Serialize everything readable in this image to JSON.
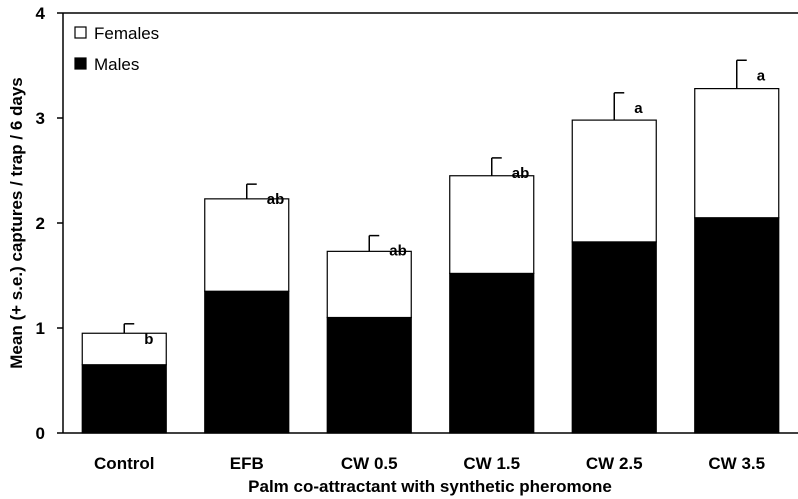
{
  "chart_data": {
    "type": "bar",
    "stacked": true,
    "categories": [
      "Control",
      "EFB",
      "CW 0.5",
      "CW 1.5",
      "CW 2.5",
      "CW 3.5"
    ],
    "series": [
      {
        "name": "Males",
        "color": "#000000",
        "values": [
          0.65,
          1.35,
          1.1,
          1.52,
          1.82,
          2.05
        ]
      },
      {
        "name": "Females",
        "color": "#ffffff",
        "values": [
          0.3,
          0.88,
          0.63,
          0.93,
          1.16,
          1.23
        ]
      }
    ],
    "totals": [
      0.95,
      2.23,
      1.73,
      2.45,
      2.98,
      3.28
    ],
    "errors": [
      0.09,
      0.14,
      0.15,
      0.17,
      0.26,
      0.27
    ],
    "annotations": [
      "b",
      "ab",
      "ab",
      "ab",
      "a",
      "a"
    ],
    "ylim": [
      0,
      4
    ],
    "yticks": [
      0,
      1,
      2,
      3,
      4
    ],
    "xlabel": "Palm co-attractant with synthetic pheromone",
    "ylabel": "Mean (+ s.e.) captures / trap / 6 days",
    "legend": {
      "position": "top-left",
      "entries": [
        "Females",
        "Males"
      ]
    },
    "grid": false
  }
}
